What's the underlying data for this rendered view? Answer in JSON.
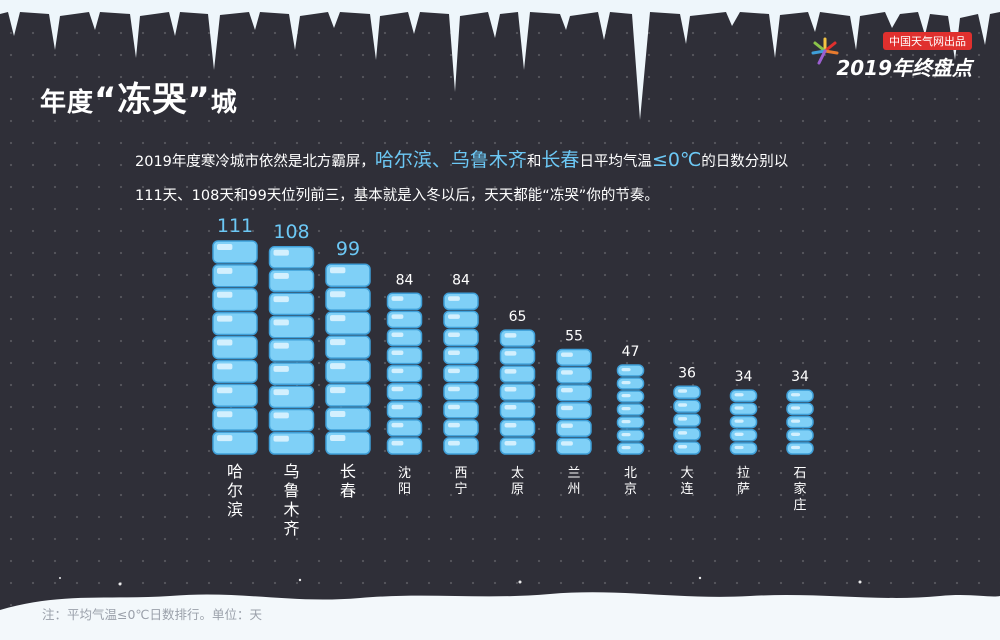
{
  "header": {
    "title_pre": "年度",
    "title_quote": "“冻哭”",
    "title_post": "城",
    "badge": "中国天气网出品",
    "brand": "2019年终盘点"
  },
  "intro": {
    "part1": "2019年度寒冷城市依然是北方霸屏，",
    "hl_cities": "哈尔滨、乌鲁木齐",
    "part2": "和",
    "hl_city3": "长春",
    "part3": "日平均气温",
    "hl_cond": "≤0℃",
    "part4": "的日数分别以",
    "line2": "111天、108天和99天位列前三，基本就是入冬以后，天天都能“冻哭”你的节奏。"
  },
  "footnote": "注：平均气温≤0℃日数排行。单位：天",
  "colors": {
    "background": "#2f2f38",
    "highlight": "#6cc8f5",
    "ice": "#7fd0f7",
    "ice_dark": "#3f9fd8",
    "badge": "#e0302e"
  },
  "chart_data": {
    "type": "bar",
    "categories": [
      "哈尔滨",
      "乌鲁木齐",
      "长春",
      "沈阳",
      "西宁",
      "太原",
      "兰州",
      "北京",
      "大连",
      "拉萨",
      "石家庄"
    ],
    "values": [
      111,
      108,
      99,
      84,
      84,
      65,
      55,
      47,
      36,
      34,
      34
    ],
    "title": "",
    "xlabel": "",
    "ylabel": "",
    "ylim": [
      0,
      111
    ],
    "legend": "none",
    "grid": false
  }
}
